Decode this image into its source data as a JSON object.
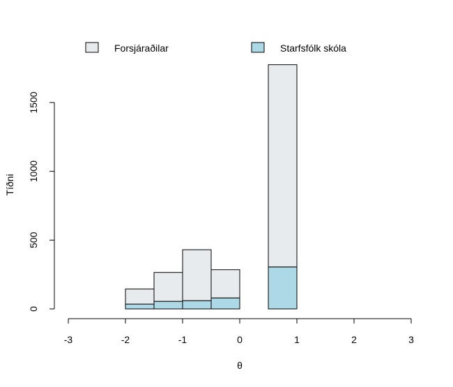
{
  "chart_data": {
    "type": "bar",
    "stacked": true,
    "xlabel": "θ",
    "ylabel": "Tíðni",
    "x_ticks": [
      -3,
      -2,
      -1,
      0,
      1,
      2,
      3
    ],
    "x_tick_labels": [
      "-3",
      "-2",
      "-1",
      "0",
      "1",
      "2",
      "3"
    ],
    "y_ticks": [
      0,
      500,
      1000,
      1500
    ],
    "y_tick_labels": [
      "0",
      "500",
      "1000",
      "1500"
    ],
    "xlim": [
      -3,
      3
    ],
    "ylim": [
      0,
      1800
    ],
    "bins": [
      {
        "x0": -2.0,
        "x1": -1.5
      },
      {
        "x0": -1.5,
        "x1": -1.0
      },
      {
        "x0": -1.0,
        "x1": -0.5
      },
      {
        "x0": -0.5,
        "x1": 0.0
      },
      {
        "x0": 0.0,
        "x1": 0.5
      },
      {
        "x0": 0.5,
        "x1": 1.0
      }
    ],
    "series": [
      {
        "name": "Starfsfólk skóla",
        "color": "#add8e6",
        "values": [
          35,
          55,
          60,
          80,
          0,
          305
        ]
      },
      {
        "name": "Forsjáraðilar",
        "color": "#e8ebee",
        "values": [
          110,
          210,
          370,
          205,
          0,
          1470
        ]
      }
    ],
    "legend": {
      "placement": "top",
      "entries": [
        {
          "name": "Forsjáraðilar",
          "color": "#e8ebee"
        },
        {
          "name": "Starfsfólk skóla",
          "color": "#add8e6"
        }
      ]
    },
    "grid": false
  }
}
